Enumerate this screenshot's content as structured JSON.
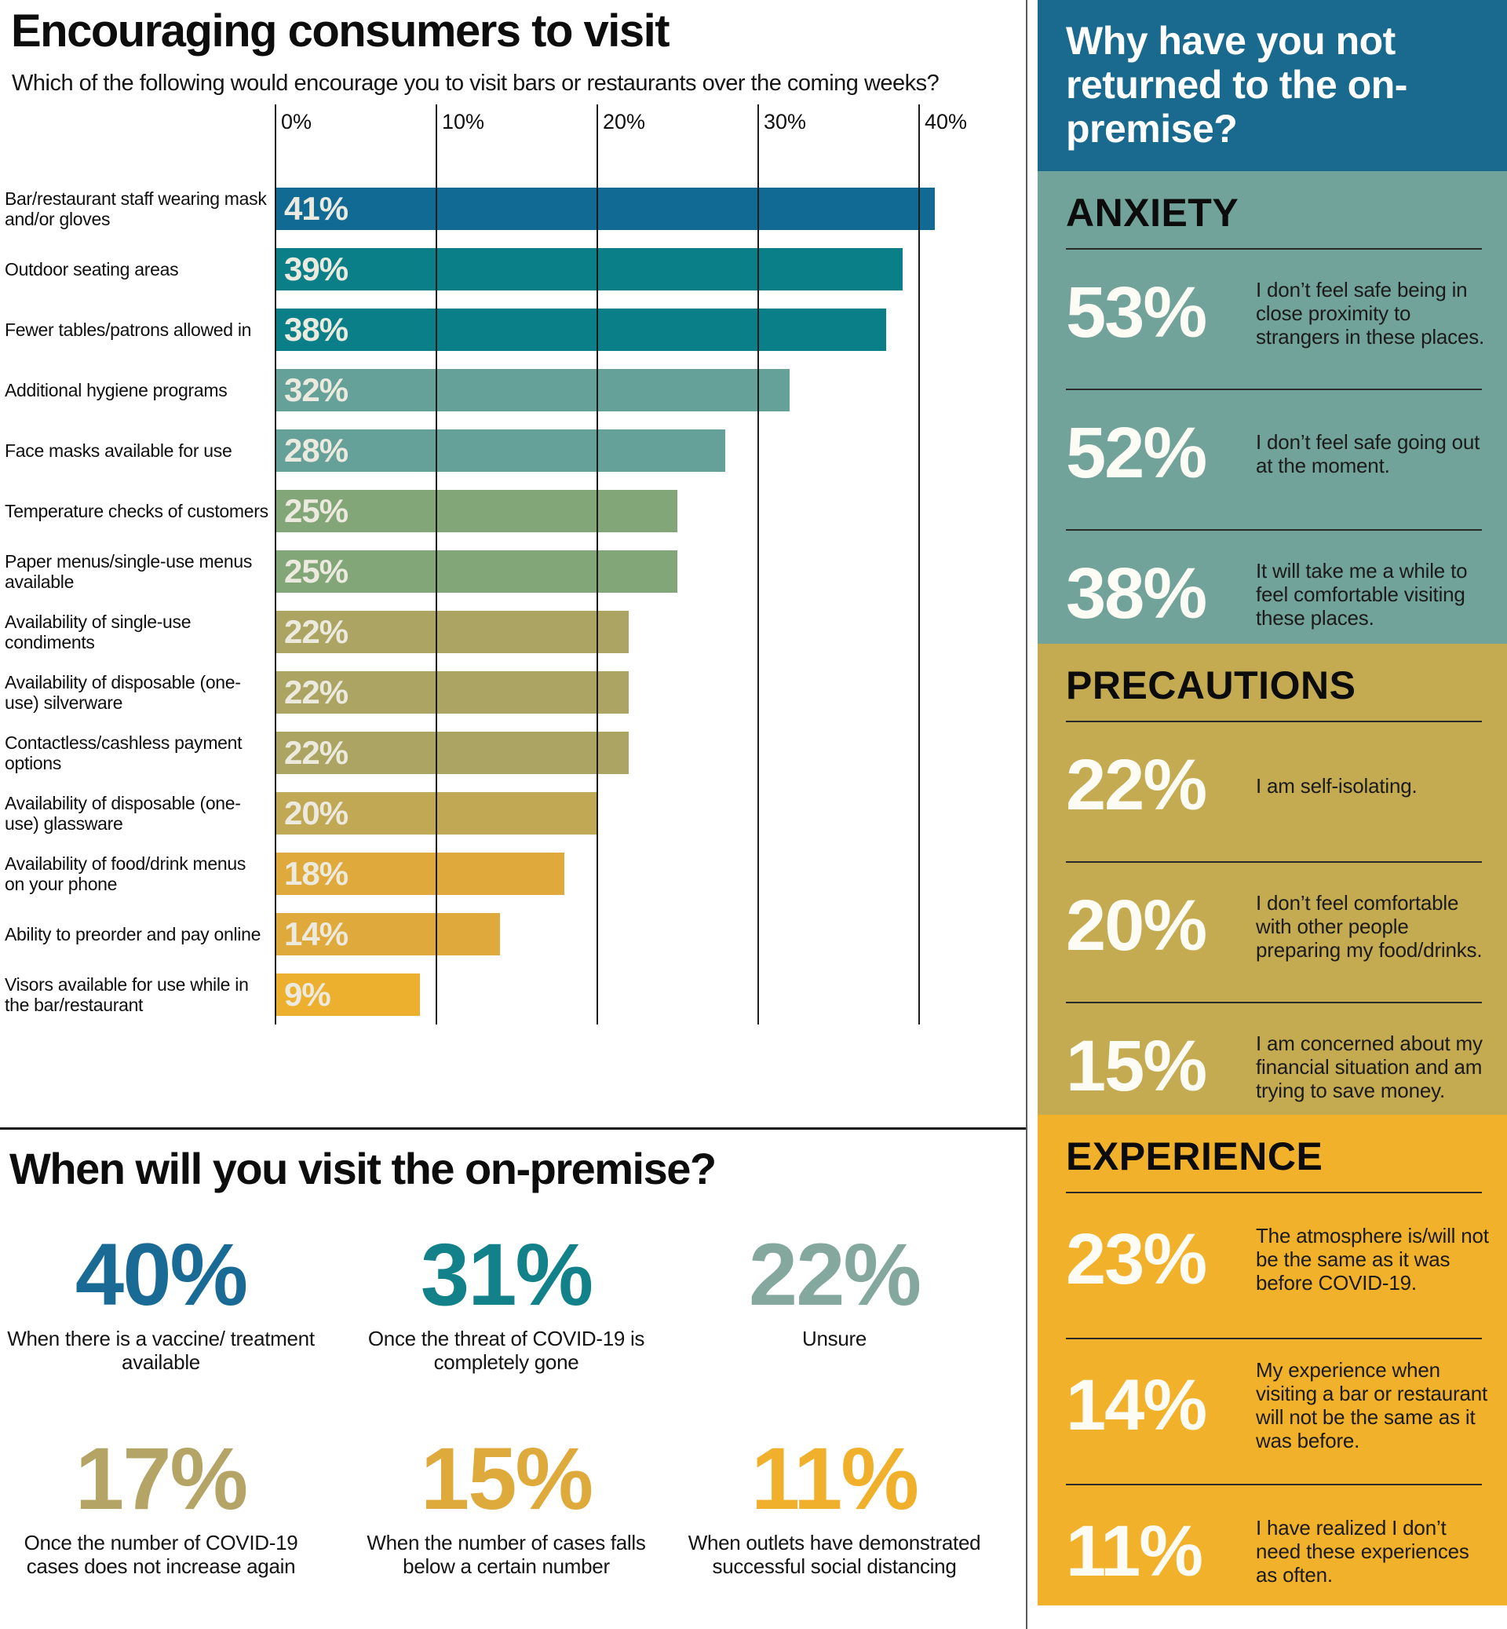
{
  "chart_data": [
    {
      "type": "bar",
      "name": "encouraging-consumers-to-visit",
      "orientation": "horizontal",
      "title": "Encouraging consumers to visit",
      "subtitle": "Which of the following would encourage you to visit bars or restaurants over the coming weeks?",
      "unit": "%",
      "xlim": [
        0,
        40
      ],
      "x_ticks": [
        "0%",
        "10%",
        "20%",
        "30%",
        "40%"
      ],
      "grid": "vertical",
      "value_labels": "inside-left",
      "bars": [
        {
          "label": "Bar/restaurant staff wearing mask and/or gloves",
          "value": 41,
          "display": "41%",
          "color": "#116a94"
        },
        {
          "label": "Outdoor seating areas",
          "value": 39,
          "display": "39%",
          "color": "#0a7f88"
        },
        {
          "label": "Fewer tables/patrons allowed in",
          "value": 38,
          "display": "38%",
          "color": "#0a7f88"
        },
        {
          "label": "Additional hygiene programs",
          "value": 32,
          "display": "32%",
          "color": "#65a099"
        },
        {
          "label": "Face masks available for use",
          "value": 28,
          "display": "28%",
          "color": "#65a099"
        },
        {
          "label": "Temperature checks of customers",
          "value": 25,
          "display": "25%",
          "color": "#82a678"
        },
        {
          "label": "Paper menus/single-use menus available",
          "value": 25,
          "display": "25%",
          "color": "#82a678"
        },
        {
          "label": "Availability of single-use condiments",
          "value": 22,
          "display": "22%",
          "color": "#aca462"
        },
        {
          "label": "Availability of disposable (one-use) silverware",
          "value": 22,
          "display": "22%",
          "color": "#aca462"
        },
        {
          "label": "Contactless/cashless payment options",
          "value": 22,
          "display": "22%",
          "color": "#aca462"
        },
        {
          "label": "Availability of disposable (one-use) glassware",
          "value": 20,
          "display": "20%",
          "color": "#c0a855"
        },
        {
          "label": "Availability of food/drink menus on your phone",
          "value": 18,
          "display": "18%",
          "color": "#dfa93c"
        },
        {
          "label": "Ability to preorder and pay online",
          "value": 14,
          "display": "14%",
          "color": "#dfa93c"
        },
        {
          "label": "Visors available for use while in the bar/restaurant",
          "value": 9,
          "display": "9%",
          "color": "#edb02e"
        }
      ]
    },
    {
      "type": "stat-grid",
      "name": "when-will-you-visit",
      "title": "When will you visit the on-premise?",
      "unit": "%",
      "stats": [
        {
          "display": "40%",
          "value": 40,
          "caption": "When there is a vaccine/ treatment available",
          "color": "#1a6a96"
        },
        {
          "display": "31%",
          "value": 31,
          "caption": "Once the threat of COVID-19 is completely gone",
          "color": "#12818a"
        },
        {
          "display": "22%",
          "value": 22,
          "caption": "Unsure",
          "color": "#84a89e"
        },
        {
          "display": "17%",
          "value": 17,
          "caption": "Once the number of COVID-19 cases does not increase again",
          "color": "#b4a466"
        },
        {
          "display": "15%",
          "value": 15,
          "caption": "When the number of cases falls below a certain number",
          "color": "#dfaa3c"
        },
        {
          "display": "11%",
          "value": 11,
          "caption": "When outlets have demonstrated successful social distancing",
          "color": "#f0b02c"
        }
      ]
    },
    {
      "type": "stat-list",
      "name": "why-have-you-not-returned",
      "title": "Why have you not returned to the on-premise?",
      "title_bg": "#1a6a90",
      "title_color": "#ffffff",
      "unit": "%",
      "sections": [
        {
          "heading": "ANXIETY",
          "bg": "#72a39a",
          "items": [
            {
              "display": "53%",
              "value": 53,
              "text": "I don’t feel safe being in close proximity to strangers in these places."
            },
            {
              "display": "52%",
              "value": 52,
              "text": "I don’t feel safe going out at the moment."
            },
            {
              "display": "38%",
              "value": 38,
              "text": "It will take me a while to feel comfortable visiting these places."
            }
          ]
        },
        {
          "heading": "PRECAUTIONS",
          "bg": "#c4ab52",
          "items": [
            {
              "display": "22%",
              "value": 22,
              "text": "I am self-isolating."
            },
            {
              "display": "20%",
              "value": 20,
              "text": "I don’t feel comfortable with other people preparing my food/drinks."
            },
            {
              "display": "15%",
              "value": 15,
              "text": "I am concerned about my financial situation and am trying to save money."
            }
          ]
        },
        {
          "heading": "EXPERIENCE",
          "bg": "#f2b12b",
          "items": [
            {
              "display": "23%",
              "value": 23,
              "text": "The atmosphere is/will not be the same as it was before COVID-19."
            },
            {
              "display": "14%",
              "value": 14,
              "text": "My experience when visiting a bar or restaurant will not be the same as it was before."
            },
            {
              "display": "11%",
              "value": 11,
              "text": "I have realized I don’t need these experiences as often."
            }
          ]
        }
      ]
    }
  ]
}
